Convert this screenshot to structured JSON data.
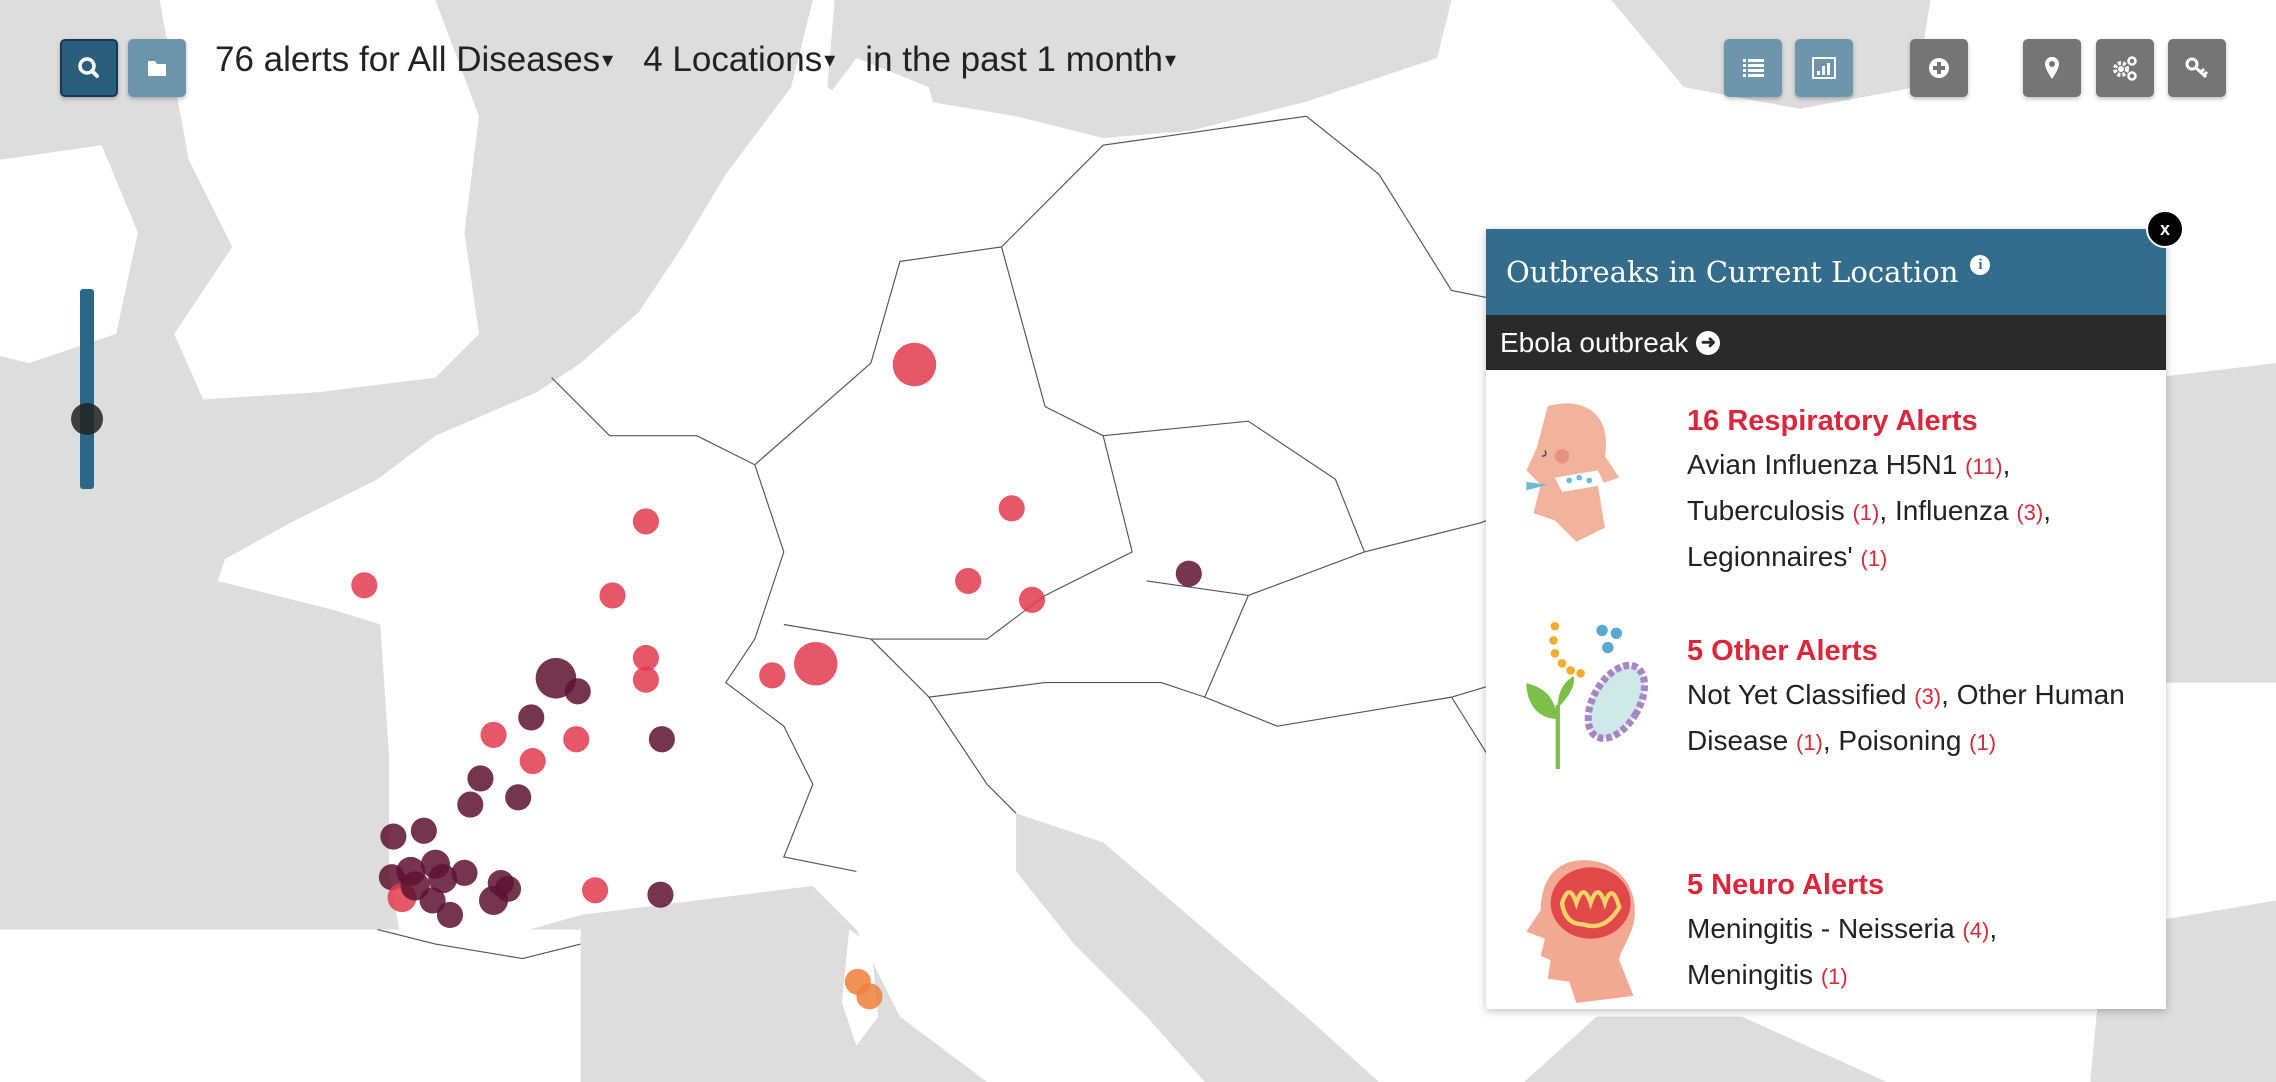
{
  "toolbar": {
    "search_icon": "search-icon",
    "folder_icon": "folder-icon",
    "query": {
      "alerts": "76 alerts for All Diseases",
      "locations": "4 Locations",
      "period": "in the past 1 month",
      "caret": "▾"
    },
    "right_buttons": [
      "list-icon",
      "bar-chart-icon",
      "plus-circle-icon",
      "map-pin-icon",
      "gears-icon",
      "key-icon"
    ]
  },
  "colors": {
    "accent_blue": "#346d8b",
    "alert_red": "#d9283c",
    "marker_red": "#e23a4e",
    "marker_dark": "#5e1230",
    "marker_orange": "#ee7f3b",
    "sea": "#dcdddc"
  },
  "zoom_slider": {
    "level": 0.65
  },
  "panel": {
    "title": "Outbreaks in Current Location",
    "info_icon": "i",
    "close_label": "x",
    "outbreak_link": "Ebola outbreak",
    "sections": [
      {
        "title": "16 Respiratory Alerts",
        "icon": "respiratory-icon",
        "items": [
          {
            "name": "Avian Influenza H5N1",
            "count": "(11)",
            "sep": ","
          },
          {
            "name": "Tuberculosis",
            "count": "(1)",
            "sep": ","
          },
          {
            "name": "Influenza",
            "count": "(3)",
            "sep": ","
          },
          {
            "name": "Legionnaires'",
            "count": "(1)",
            "sep": ""
          }
        ]
      },
      {
        "title": "5 Other Alerts",
        "icon": "germ-plant-icon",
        "items": [
          {
            "name": "Not Yet Classified",
            "count": "(3)",
            "sep": ","
          },
          {
            "name": "Other Human Disease",
            "count": "(1)",
            "sep": ","
          },
          {
            "name": "Poisoning",
            "count": "(1)",
            "sep": ""
          }
        ]
      },
      {
        "title": "5 Neuro Alerts",
        "icon": "brain-icon",
        "items": [
          {
            "name": "Meningitis - Neisseria",
            "count": "(4)",
            "sep": ","
          },
          {
            "name": "Meningitis",
            "count": "(1)",
            "sep": ""
          }
        ]
      }
    ]
  }
}
